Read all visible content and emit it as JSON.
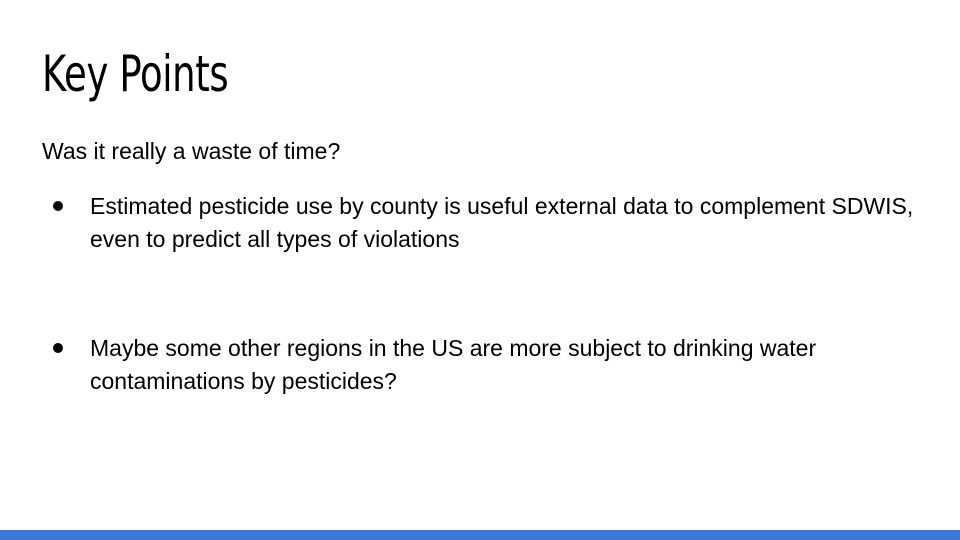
{
  "slide": {
    "title": "Key Points",
    "intro": "Was it really a waste of time?",
    "bullets": [
      "Estimated pesticide use by county is useful external data to complement SDWIS, even to predict all types of violations",
      "Maybe some other regions in the US are more subject to drinking water contaminations by pesticides?"
    ]
  },
  "colors": {
    "accent_bar": "#3c78d8",
    "text": "#000000",
    "background": "#ffffff"
  }
}
